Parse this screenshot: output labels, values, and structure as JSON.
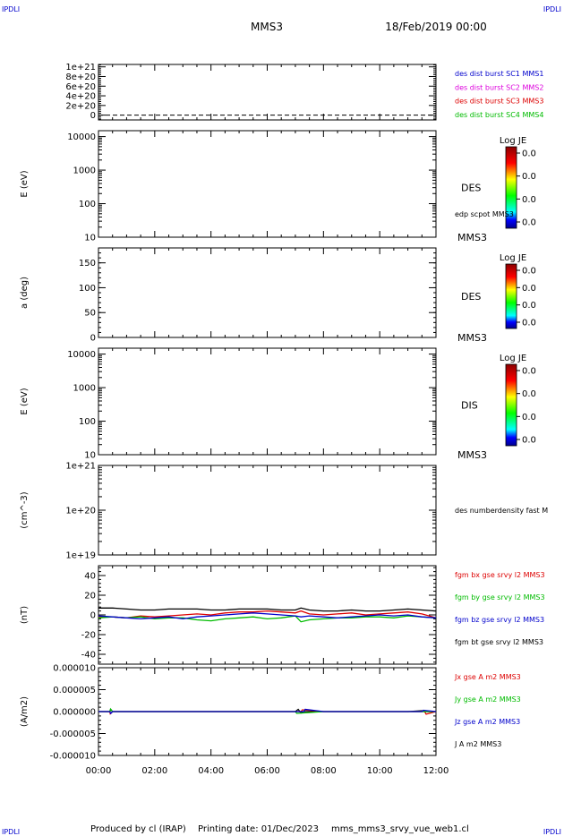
{
  "corner": {
    "tl": "IPDLI",
    "tr": "IPDLI",
    "bl": "IPDLI",
    "br": "IPDLI"
  },
  "header": {
    "spacecraft": "MMS3",
    "date": "18/Feb/2019 00:00"
  },
  "footer": {
    "produced": "Produced by cl (IRAP)",
    "printing": "Printing date: 01/Dec/2023",
    "file": "mms_mms3_srvy_vue_web1.cl"
  },
  "time_axis": {
    "labels": [
      "00:00",
      "02:00",
      "04:00",
      "06:00",
      "08:00",
      "10:00",
      "12:00"
    ],
    "start_h": 0,
    "end_h": 12
  },
  "colors": {
    "red": "#dd0000",
    "green": "#00bb00",
    "blue": "#0000cc",
    "magenta": "#dd00dd",
    "black": "#000000",
    "frame": "#000000"
  },
  "chart_data": [
    {
      "id": "p1",
      "type": "line",
      "ylabel": "",
      "yscale": "linear",
      "ylim": [
        -1e+20,
        1.05e+21
      ],
      "yticks": [
        {
          "v": 1e+21,
          "l": "1e+21"
        },
        {
          "v": 8e+20,
          "l": "8e+20"
        },
        {
          "v": 6e+20,
          "l": "6e+20"
        },
        {
          "v": 4e+20,
          "l": "4e+20"
        },
        {
          "v": 2e+20,
          "l": "2e+20"
        },
        {
          "v": 0,
          "l": "0"
        }
      ],
      "dashed_zero": true,
      "right": {
        "kind": "legend",
        "items": [
          {
            "text": "des dist burst SC1 MMS1",
            "color": "#0000cc"
          },
          {
            "text": "des dist burst SC2 MMS2",
            "color": "#dd00dd"
          },
          {
            "text": "des dist burst SC3 MMS3",
            "color": "#dd0000"
          },
          {
            "text": "des dist burst SC4 MMS4",
            "color": "#00bb00"
          }
        ]
      },
      "series": []
    },
    {
      "id": "p2",
      "type": "heatmap",
      "ylabel": "E (eV)",
      "yscale": "log",
      "ylim": [
        10,
        15000
      ],
      "yticks": [
        {
          "v": 10000,
          "l": "10000"
        },
        {
          "v": 1000,
          "l": "1000"
        },
        {
          "v": 100,
          "l": "100"
        },
        {
          "v": 10,
          "l": "10"
        }
      ],
      "right": {
        "kind": "colorbar",
        "title": "Log JE",
        "ticks": [
          "0.0",
          "0.0",
          "0.0",
          "0.0"
        ],
        "label": "DES",
        "sub": "MMS3",
        "extra": "edp scpot MMS3"
      },
      "series": []
    },
    {
      "id": "p3",
      "type": "heatmap",
      "ylabel": "a (deg)",
      "yscale": "linear",
      "ylim": [
        0,
        180
      ],
      "yticks": [
        {
          "v": 150,
          "l": "150"
        },
        {
          "v": 100,
          "l": "100"
        },
        {
          "v": 50,
          "l": "50"
        },
        {
          "v": 0,
          "l": "0"
        }
      ],
      "right": {
        "kind": "colorbar",
        "title": "Log JE",
        "ticks": [
          "0.0",
          "0.0",
          "0.0",
          "0.0"
        ],
        "label": "DES",
        "sub": "MMS3"
      },
      "series": []
    },
    {
      "id": "p4",
      "type": "heatmap",
      "ylabel": "E (eV)",
      "yscale": "log",
      "ylim": [
        10,
        15000
      ],
      "yticks": [
        {
          "v": 10000,
          "l": "10000"
        },
        {
          "v": 1000,
          "l": "1000"
        },
        {
          "v": 100,
          "l": "100"
        },
        {
          "v": 10,
          "l": "10"
        }
      ],
      "right": {
        "kind": "colorbar",
        "title": "Log JE",
        "ticks": [
          "0.0",
          "0.0",
          "0.0",
          "0.0"
        ],
        "label": "DIS",
        "sub": "MMS3"
      },
      "series": []
    },
    {
      "id": "p5",
      "type": "line",
      "ylabel": "(cm^-3)",
      "yscale": "log",
      "ylim": [
        1e+19,
        1e+21
      ],
      "yticks": [
        {
          "v": 1e+21,
          "l": "1e+21"
        },
        {
          "v": 1e+20,
          "l": "1e+20"
        },
        {
          "v": 1e+19,
          "l": "1e+19"
        }
      ],
      "right": {
        "kind": "legend",
        "items": [
          {
            "text": "des numberdensity fast M",
            "color": "#000000"
          }
        ]
      },
      "series": []
    },
    {
      "id": "p6",
      "type": "line",
      "ylabel": "(nT)",
      "yscale": "linear",
      "ylim": [
        -50,
        50
      ],
      "yticks": [
        {
          "v": 40,
          "l": "40"
        },
        {
          "v": 20,
          "l": "20"
        },
        {
          "v": 0,
          "l": "0"
        },
        {
          "v": -20,
          "l": "-20"
        },
        {
          "v": -40,
          "l": "-40"
        }
      ],
      "right": {
        "kind": "legend",
        "items": [
          {
            "text": "fgm bx gse srvy l2 MMS3",
            "color": "#dd0000"
          },
          {
            "text": "fgm by gse srvy l2 MMS3",
            "color": "#00bb00"
          },
          {
            "text": "fgm bz gse srvy l2 MMS3",
            "color": "#0000cc"
          },
          {
            "text": "fgm bt gse srvy l2 MMS3",
            "color": "#000000"
          }
        ]
      },
      "series": [
        {
          "name": "fgm bt gse srvy l2 MMS3",
          "color": "#000000",
          "x": [
            0,
            0.5,
            1,
            1.5,
            2,
            2.5,
            3,
            3.5,
            4,
            4.5,
            5,
            5.5,
            6,
            6.5,
            7,
            7.2,
            7.5,
            8,
            8.5,
            9,
            9.5,
            10,
            10.5,
            11,
            11.5,
            12
          ],
          "y": [
            7,
            7,
            6,
            5,
            5,
            6,
            6,
            6,
            5,
            5,
            6,
            6,
            6,
            5,
            5,
            7,
            5,
            4,
            4,
            5,
            4,
            4,
            5,
            6,
            5,
            4
          ]
        },
        {
          "name": "fgm bx gse srvy l2 MMS3",
          "color": "#dd0000",
          "x": [
            0,
            0.5,
            1,
            1.5,
            2,
            2.5,
            3,
            3.5,
            4,
            4.5,
            5,
            5.5,
            6,
            6.5,
            7,
            7.2,
            7.5,
            8,
            8.5,
            9,
            9.5,
            10,
            10.5,
            11,
            11.5,
            12
          ],
          "y": [
            -2,
            -2,
            -3,
            -1,
            -2,
            -1,
            0,
            1,
            0,
            2,
            3,
            3,
            4,
            3,
            2,
            4,
            1,
            0,
            1,
            2,
            0,
            1,
            2,
            3,
            1,
            -3
          ]
        },
        {
          "name": "fgm by gse srvy l2 MMS3",
          "color": "#00bb00",
          "x": [
            0,
            0.5,
            1,
            1.5,
            2,
            2.5,
            3,
            3.5,
            4,
            4.5,
            5,
            5.5,
            6,
            6.5,
            7,
            7.2,
            7.5,
            8,
            8.5,
            9,
            9.5,
            10,
            10.5,
            11,
            11.5,
            12
          ],
          "y": [
            -3,
            -2,
            -3,
            -2,
            -4,
            -3,
            -3,
            -5,
            -6,
            -4,
            -3,
            -2,
            -4,
            -3,
            -1,
            -7,
            -5,
            -4,
            -3,
            -3,
            -2,
            -2,
            -3,
            -1,
            -2,
            -3
          ]
        },
        {
          "name": "fgm bz gse srvy l2 MMS3",
          "color": "#0000cc",
          "x": [
            0,
            0.5,
            1,
            1.5,
            2,
            2.5,
            3,
            3.5,
            4,
            4.5,
            5,
            5.5,
            6,
            6.5,
            7,
            7.2,
            7.5,
            8,
            8.5,
            9,
            9.5,
            10,
            10.5,
            11,
            11.5,
            12
          ],
          "y": [
            -1,
            -2,
            -3,
            -4,
            -3,
            -2,
            -4,
            -2,
            -1,
            0,
            1,
            2,
            1,
            0,
            -1,
            -2,
            -1,
            -2,
            -3,
            -2,
            -1,
            0,
            -1,
            0,
            -2,
            -3
          ]
        }
      ]
    },
    {
      "id": "p7",
      "type": "line",
      "ylabel": "(A/m2)",
      "yscale": "linear",
      "ylim": [
        -1e-05,
        1e-05
      ],
      "yticks": [
        {
          "v": 1e-05,
          "l": "0.000010"
        },
        {
          "v": 5e-06,
          "l": "0.000005"
        },
        {
          "v": 0,
          "l": "0.000000"
        },
        {
          "v": -5e-06,
          "l": "-0.000005"
        },
        {
          "v": -1e-05,
          "l": "-0.000010"
        }
      ],
      "right": {
        "kind": "legend",
        "items": [
          {
            "text": "Jx gse A m2 MMS3",
            "color": "#dd0000"
          },
          {
            "text": "Jy gse A m2 MMS3",
            "color": "#00bb00"
          },
          {
            "text": "Jz gse A m2 MMS3",
            "color": "#0000cc"
          },
          {
            "text": "J A m2 MMS3",
            "color": "#000000"
          }
        ]
      },
      "series": [
        {
          "name": "J A m2 MMS3",
          "color": "#000000",
          "x": [
            0,
            0.4,
            0.45,
            0.5,
            1,
            2,
            3,
            4,
            5,
            6,
            7,
            7.1,
            7.2,
            7.3,
            8,
            9,
            10,
            11,
            11.5,
            11.6,
            12
          ],
          "y": [
            0,
            0,
            4e-07,
            0,
            0,
            0,
            0,
            0,
            0,
            0,
            0,
            5e-07,
            -3e-07,
            0,
            0,
            0,
            0,
            0,
            2e-07,
            0,
            0
          ]
        },
        {
          "name": "Jx gse A m2 MMS3",
          "color": "#dd0000",
          "x": [
            0,
            0.4,
            0.42,
            0.5,
            2,
            4,
            6,
            7.2,
            7.25,
            8,
            10,
            11.6,
            11.65,
            12
          ],
          "y": [
            0,
            0,
            -5e-07,
            0,
            0,
            0,
            0,
            0,
            4e-07,
            0,
            0,
            0,
            -6e-07,
            0
          ]
        },
        {
          "name": "Jy gse A m2 MMS3",
          "color": "#00bb00",
          "x": [
            0,
            0.4,
            0.43,
            0.5,
            2,
            4,
            6,
            7,
            7.05,
            8,
            10,
            12
          ],
          "y": [
            0,
            0,
            6e-07,
            0,
            0,
            0,
            0,
            0,
            -4e-07,
            0,
            0,
            0
          ]
        },
        {
          "name": "Jz gse A m2 MMS3",
          "color": "#0000cc",
          "x": [
            0,
            0.4,
            0.44,
            0.5,
            2,
            4,
            6,
            7.3,
            7.35,
            8,
            10,
            11.5,
            11.55,
            12
          ],
          "y": [
            0,
            0,
            -4e-07,
            0,
            0,
            0,
            0,
            0,
            5e-07,
            0,
            0,
            0,
            3e-07,
            0
          ]
        }
      ]
    }
  ]
}
